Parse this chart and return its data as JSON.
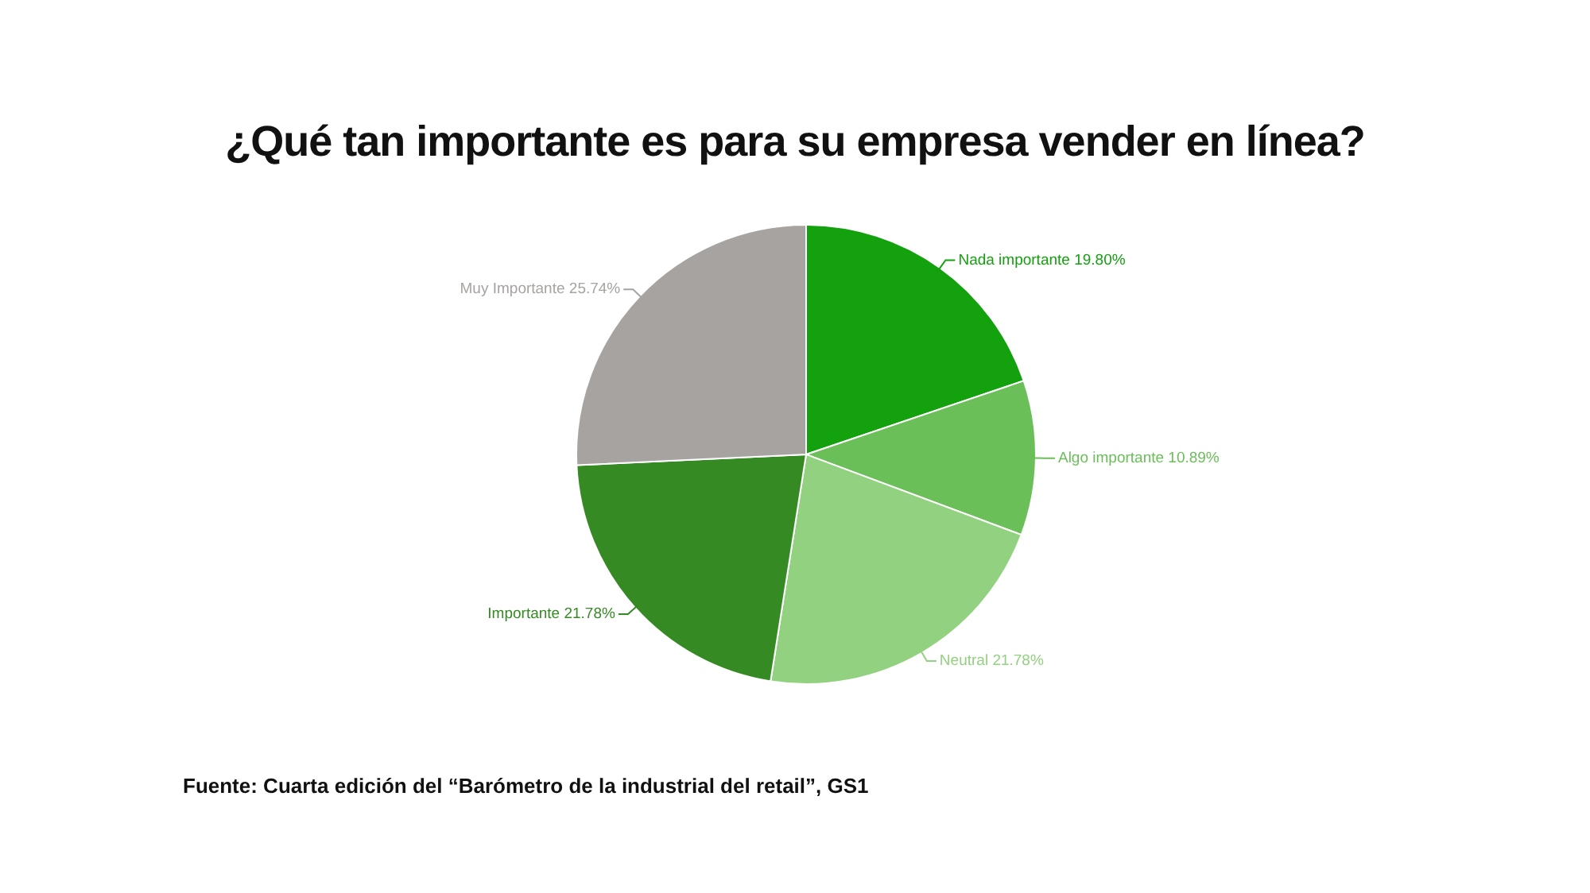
{
  "chart_data": {
    "type": "pie",
    "title": "¿Qué tan importante es para su empresa vender en línea?",
    "categories": [
      "Nada importante",
      "Algo importante",
      "Neutral",
      "Importante",
      "Muy Importante"
    ],
    "values": [
      19.8,
      10.89,
      21.78,
      21.78,
      25.74
    ],
    "value_labels": [
      "19.80%",
      "10.89%",
      "21.78%",
      "21.78%",
      "25.74%"
    ],
    "colors": [
      "#13a10e",
      "#6abf59",
      "#92d17f",
      "#358a23",
      "#a7a3a1"
    ],
    "annotations": [
      "Fuente: Cuarta edición del “Barómetro de la industrial del retail”, GS1"
    ]
  }
}
